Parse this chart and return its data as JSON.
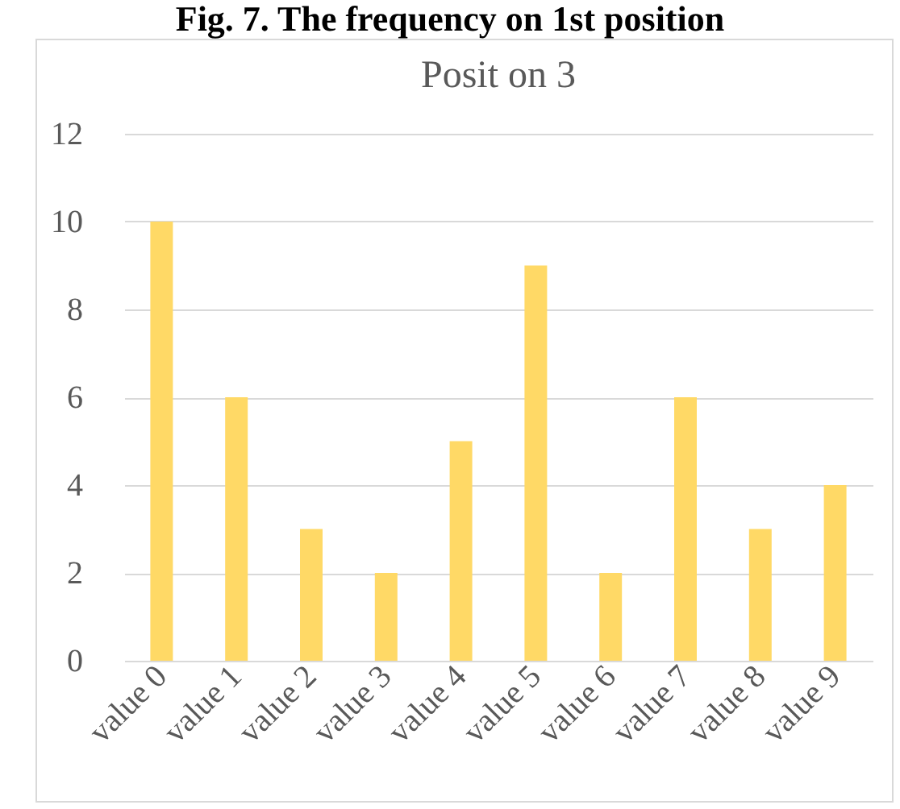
{
  "chart_data": {
    "type": "bar",
    "title": "Posit on 3",
    "annotations": [
      "Fig. 7. The frequency on 1st position"
    ],
    "categories": [
      "value 0",
      "value 1",
      "value 2",
      "value 3",
      "value 4",
      "value 5",
      "value 6",
      "value 7",
      "value 8",
      "value 9"
    ],
    "values": [
      10,
      6,
      3,
      2,
      5,
      9,
      2,
      6,
      3,
      4
    ],
    "color": "#ffd966",
    "ylim": [
      0,
      12
    ],
    "yticks": [
      0,
      2,
      4,
      6,
      8,
      10,
      12
    ],
    "grid": "y"
  }
}
